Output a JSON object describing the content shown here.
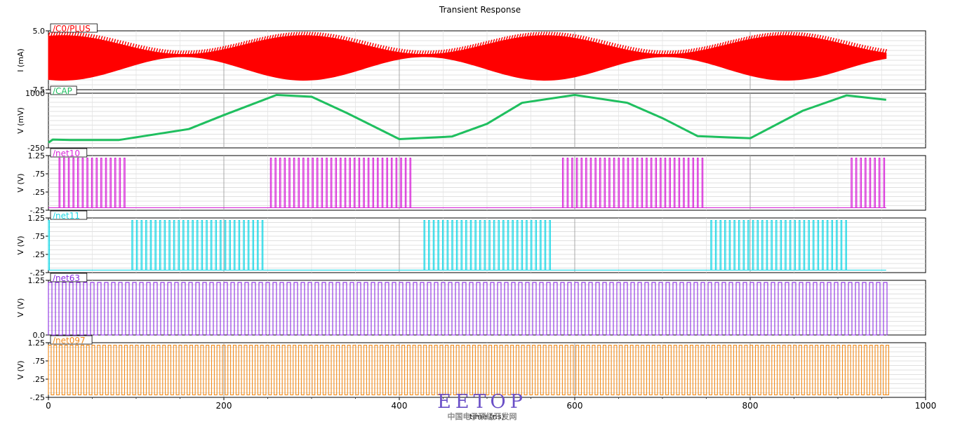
{
  "chart_data": {
    "type": "line",
    "title": "Transient Response",
    "xlabel": "time (ns)",
    "xlim": [
      0,
      1000
    ],
    "x_ticks": [
      "0",
      "200",
      "400",
      "600",
      "800",
      "1000"
    ],
    "x_tick_values": [
      0,
      200,
      400,
      600,
      800,
      1000
    ],
    "signal_end_ns": 955,
    "grid": true,
    "panels": [
      {
        "name": "/C0/PLUS",
        "ylabel": "I (mA)",
        "color": "#ff0000",
        "ylim": [
          -7.5,
          5.0
        ],
        "y_ticks": [
          "5.0",
          "-7.5"
        ],
        "y_tick_values": [
          5.0,
          -7.5
        ],
        "kind": "current",
        "envelope": {
          "upper_mean": 2.0,
          "upper_swing": 2.0,
          "lower_mean": -3.0,
          "lower_swing": 2.5,
          "period_ns": 275
        }
      },
      {
        "name": "/CAP",
        "ylabel": "V (mV)",
        "color": "#1fbf5f",
        "ylim": [
          -250,
          1000
        ],
        "y_ticks": [
          "1000",
          "-250"
        ],
        "y_tick_values": [
          1000,
          -250
        ],
        "kind": "analog",
        "x": [
          0,
          5,
          25,
          80,
          160,
          200,
          260,
          300,
          340,
          400,
          460,
          500,
          540,
          600,
          660,
          700,
          740,
          800,
          860,
          910,
          955
        ],
        "y": [
          -130,
          -60,
          -70,
          -70,
          180,
          500,
          960,
          920,
          550,
          -50,
          10,
          300,
          780,
          960,
          780,
          430,
          20,
          -30,
          600,
          950,
          850
        ]
      },
      {
        "name": "/net10",
        "ylabel": "V (V)",
        "color": "#d826d8",
        "ylim": [
          -0.25,
          1.25
        ],
        "y_ticks": [
          "1.25",
          ".75",
          ".25",
          "-.25"
        ],
        "y_tick_values": [
          1.25,
          0.75,
          0.25,
          -0.25
        ],
        "kind": "bursts",
        "low": -0.18,
        "high": 1.18,
        "bursts": [
          [
            12,
            88
          ],
          [
            253,
            415
          ],
          [
            586,
            745
          ],
          [
            915,
            955
          ]
        ]
      },
      {
        "name": "/net11",
        "ylabel": "V (V)",
        "color": "#1fd8e6",
        "ylim": [
          -0.25,
          1.25
        ],
        "y_ticks": [
          "1.25",
          ".75",
          ".25",
          "-.25"
        ],
        "y_tick_values": [
          1.25,
          0.75,
          0.25,
          -0.25
        ],
        "kind": "bursts",
        "low": -0.18,
        "high": 1.18,
        "bursts": [
          [
            0,
            4
          ],
          [
            95,
            248
          ],
          [
            428,
            576
          ],
          [
            755,
            910
          ]
        ]
      },
      {
        "name": "/net63",
        "ylabel": "V (V)",
        "color": "#8b2be2",
        "ylim": [
          0.0,
          1.25
        ],
        "y_ticks": [
          "1.25",
          "0.0"
        ],
        "y_tick_values": [
          1.25,
          0.0
        ],
        "kind": "square",
        "low": 0.0,
        "high": 1.2,
        "period_ns": 8.0
      },
      {
        "name": "/net097",
        "ylabel": "V (V)",
        "color": "#f28a1a",
        "ylim": [
          -0.25,
          1.25
        ],
        "y_ticks": [
          "1.25",
          ".75",
          ".25",
          "-.25"
        ],
        "y_tick_values": [
          1.25,
          0.75,
          0.25,
          -0.25
        ],
        "kind": "square",
        "low": -0.18,
        "high": 1.18,
        "period_ns": 6.2
      }
    ]
  },
  "watermark": {
    "main": "EETOP",
    "sub": "中国电子顶级开发网"
  }
}
